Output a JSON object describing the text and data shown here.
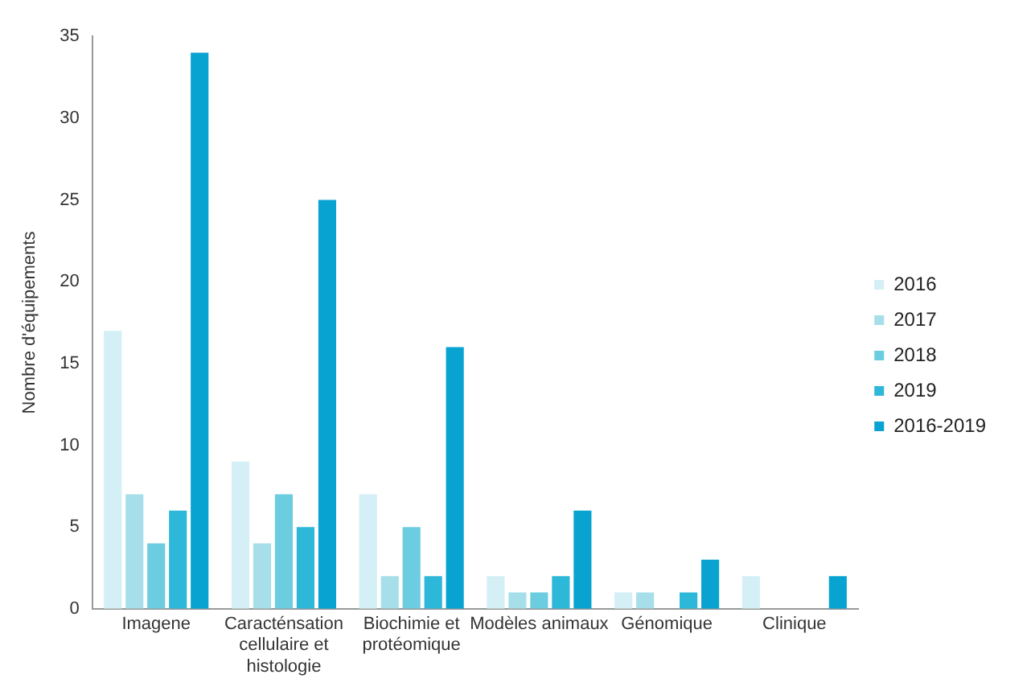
{
  "chart_data": {
    "type": "bar",
    "ylabel": "Nombre d'équipements",
    "categories": [
      "Imagene",
      "Caracténsation cellulaire et histologie",
      "Biochimie et protéomique",
      "Modèles animaux",
      "Génomique",
      "Clinique"
    ],
    "series": [
      {
        "name": "2016",
        "color": "#d4eff5",
        "values": [
          17,
          9,
          7,
          2,
          1,
          2
        ]
      },
      {
        "name": "2017",
        "color": "#a6dfe9",
        "values": [
          7,
          4,
          2,
          1,
          1,
          0
        ]
      },
      {
        "name": "2018",
        "color": "#6ccce0",
        "values": [
          4,
          7,
          5,
          1,
          0,
          0
        ]
      },
      {
        "name": "2019",
        "color": "#2db7d8",
        "values": [
          6,
          5,
          2,
          2,
          1,
          0
        ]
      },
      {
        "name": "2016-2019",
        "color": "#08a3d1",
        "values": [
          34,
          25,
          16,
          6,
          3,
          2
        ]
      }
    ],
    "ylim": [
      0,
      35
    ],
    "yticks": [
      0,
      5,
      10,
      15,
      20,
      25,
      30,
      35
    ],
    "grid": false,
    "legend": "right"
  }
}
